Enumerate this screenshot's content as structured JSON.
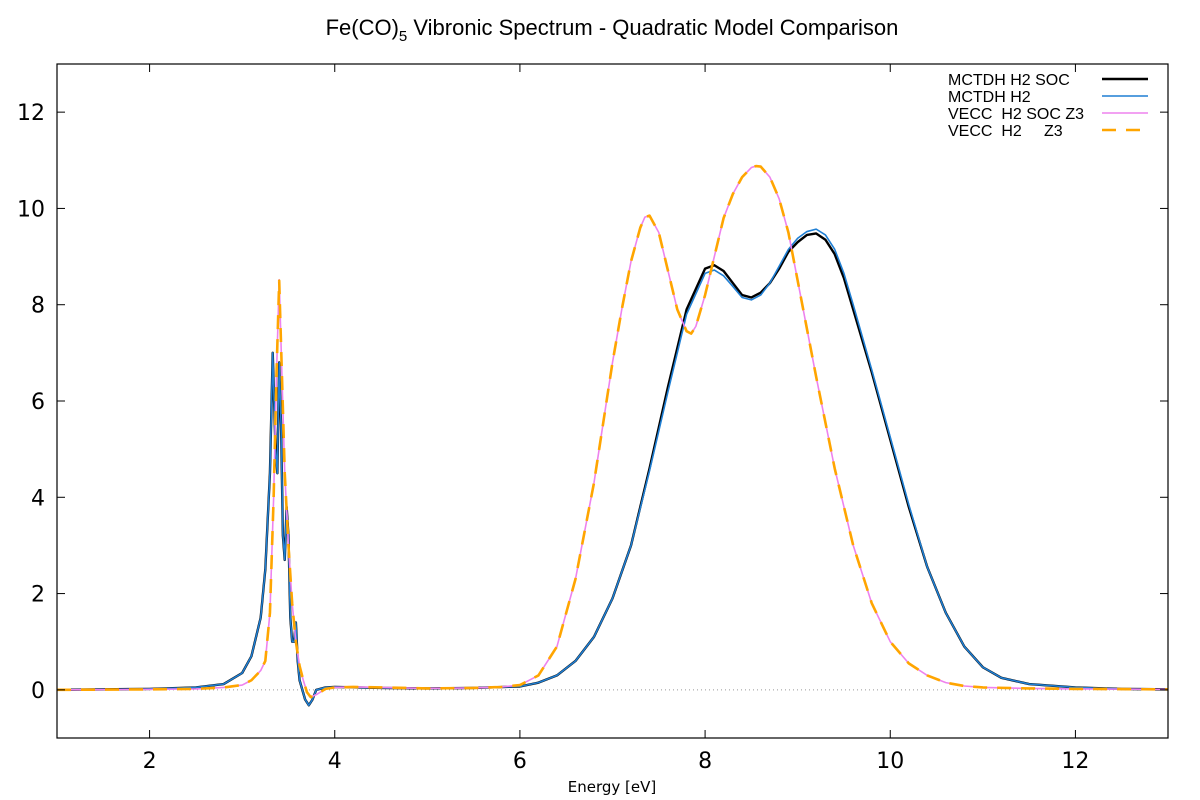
{
  "chart_data": {
    "type": "line",
    "title_main": "Fe(CO)",
    "title_sub": "5",
    "title_rest": " Vibronic Spectrum - Quadratic Model Comparison",
    "xlabel": "Energy [eV]",
    "ylabel": "",
    "xlim": [
      1,
      13
    ],
    "ylim": [
      -1,
      13
    ],
    "xticks": [
      2,
      4,
      6,
      8,
      10,
      12
    ],
    "yticks": [
      0,
      2,
      4,
      6,
      8,
      10,
      12
    ],
    "grid": false,
    "zero_line": true,
    "legend_position": "top-right",
    "series": [
      {
        "name": "MCTDH H2 SOC",
        "color": "#000000",
        "dash": "solid",
        "width": 2.4,
        "x": [
          1.0,
          2.0,
          2.5,
          2.8,
          3.0,
          3.1,
          3.2,
          3.25,
          3.3,
          3.33,
          3.36,
          3.38,
          3.4,
          3.42,
          3.44,
          3.46,
          3.48,
          3.5,
          3.52,
          3.54,
          3.56,
          3.58,
          3.6,
          3.62,
          3.65,
          3.68,
          3.72,
          3.76,
          3.8,
          3.9,
          4.0,
          4.5,
          5.0,
          5.5,
          6.0,
          6.2,
          6.4,
          6.6,
          6.8,
          7.0,
          7.2,
          7.4,
          7.6,
          7.8,
          8.0,
          8.1,
          8.2,
          8.3,
          8.4,
          8.5,
          8.6,
          8.7,
          8.8,
          8.9,
          9.0,
          9.1,
          9.2,
          9.3,
          9.4,
          9.5,
          9.6,
          9.8,
          10.0,
          10.2,
          10.4,
          10.6,
          10.8,
          11.0,
          11.2,
          11.5,
          12.0,
          12.5,
          13.0
        ],
        "y": [
          0.0,
          0.02,
          0.05,
          0.12,
          0.35,
          0.7,
          1.5,
          2.5,
          4.5,
          7.0,
          5.0,
          4.5,
          6.8,
          5.5,
          3.2,
          2.7,
          3.8,
          3.2,
          1.5,
          1.0,
          1.0,
          1.4,
          0.6,
          0.2,
          0.0,
          -0.2,
          -0.32,
          -0.2,
          0.0,
          0.05,
          0.06,
          0.04,
          0.03,
          0.04,
          0.07,
          0.15,
          0.3,
          0.6,
          1.1,
          1.9,
          3.0,
          4.6,
          6.3,
          7.9,
          8.75,
          8.82,
          8.7,
          8.45,
          8.2,
          8.15,
          8.25,
          8.45,
          8.75,
          9.1,
          9.3,
          9.45,
          9.48,
          9.35,
          9.05,
          8.55,
          7.9,
          6.6,
          5.2,
          3.8,
          2.55,
          1.6,
          0.9,
          0.47,
          0.25,
          0.12,
          0.05,
          0.02,
          0.01
        ]
      },
      {
        "name": "MCTDH H2",
        "color": "#1f7fd4",
        "dash": "solid",
        "width": 1.6,
        "x": [
          1.0,
          2.0,
          2.5,
          2.8,
          3.0,
          3.1,
          3.2,
          3.25,
          3.3,
          3.33,
          3.36,
          3.38,
          3.4,
          3.42,
          3.44,
          3.46,
          3.48,
          3.5,
          3.52,
          3.54,
          3.56,
          3.58,
          3.6,
          3.62,
          3.65,
          3.68,
          3.72,
          3.76,
          3.8,
          3.9,
          4.0,
          4.5,
          5.0,
          5.5,
          6.0,
          6.2,
          6.4,
          6.6,
          6.8,
          7.0,
          7.2,
          7.4,
          7.6,
          7.8,
          8.0,
          8.1,
          8.2,
          8.3,
          8.4,
          8.5,
          8.6,
          8.7,
          8.8,
          8.9,
          9.0,
          9.1,
          9.2,
          9.3,
          9.4,
          9.5,
          9.6,
          9.8,
          10.0,
          10.2,
          10.4,
          10.6,
          10.8,
          11.0,
          11.2,
          11.5,
          12.0,
          12.5,
          13.0
        ],
        "y": [
          0.0,
          0.02,
          0.05,
          0.12,
          0.35,
          0.7,
          1.5,
          2.5,
          4.5,
          7.0,
          5.0,
          4.5,
          6.8,
          5.5,
          3.2,
          2.7,
          3.8,
          3.2,
          1.5,
          1.0,
          1.0,
          1.4,
          0.6,
          0.2,
          0.0,
          -0.2,
          -0.32,
          -0.2,
          0.0,
          0.05,
          0.06,
          0.04,
          0.03,
          0.04,
          0.07,
          0.15,
          0.3,
          0.6,
          1.1,
          1.9,
          3.0,
          4.55,
          6.2,
          7.8,
          8.65,
          8.72,
          8.6,
          8.38,
          8.15,
          8.1,
          8.2,
          8.45,
          8.8,
          9.15,
          9.38,
          9.52,
          9.57,
          9.45,
          9.15,
          8.65,
          8.0,
          6.65,
          5.25,
          3.85,
          2.55,
          1.6,
          0.9,
          0.47,
          0.25,
          0.12,
          0.05,
          0.02,
          0.01
        ]
      },
      {
        "name": "VECC  H2 SOC Z3",
        "color": "#ee82ee",
        "dash": "solid",
        "width": 1.6,
        "x": [
          1.0,
          2.0,
          2.5,
          2.8,
          3.0,
          3.1,
          3.2,
          3.25,
          3.3,
          3.34,
          3.37,
          3.4,
          3.43,
          3.46,
          3.5,
          3.54,
          3.58,
          3.62,
          3.66,
          3.7,
          3.74,
          3.8,
          3.9,
          4.0,
          4.2,
          4.5,
          5.0,
          5.5,
          5.8,
          6.0,
          6.2,
          6.4,
          6.6,
          6.8,
          7.0,
          7.1,
          7.2,
          7.3,
          7.35,
          7.4,
          7.5,
          7.6,
          7.7,
          7.8,
          7.85,
          7.9,
          8.0,
          8.1,
          8.2,
          8.3,
          8.4,
          8.5,
          8.55,
          8.6,
          8.7,
          8.8,
          8.9,
          9.0,
          9.2,
          9.4,
          9.6,
          9.8,
          10.0,
          10.2,
          10.4,
          10.6,
          10.8,
          11.0,
          11.5,
          12.0,
          13.0
        ],
        "y": [
          0.0,
          0.01,
          0.02,
          0.05,
          0.1,
          0.2,
          0.4,
          0.6,
          1.6,
          4.0,
          6.5,
          8.52,
          6.5,
          4.5,
          3.0,
          1.8,
          1.0,
          0.5,
          0.2,
          -0.05,
          -0.15,
          -0.1,
          0.02,
          0.05,
          0.06,
          0.05,
          0.03,
          0.04,
          0.06,
          0.1,
          0.3,
          0.9,
          2.3,
          4.3,
          6.8,
          7.9,
          8.9,
          9.6,
          9.82,
          9.85,
          9.5,
          8.7,
          7.9,
          7.45,
          7.4,
          7.55,
          8.2,
          9.0,
          9.8,
          10.3,
          10.65,
          10.85,
          10.88,
          10.87,
          10.65,
          10.2,
          9.5,
          8.5,
          6.5,
          4.6,
          3.0,
          1.8,
          1.0,
          0.55,
          0.3,
          0.15,
          0.08,
          0.05,
          0.03,
          0.02,
          0.01
        ]
      },
      {
        "name": "VECC  H2     Z3",
        "color": "#ffa500",
        "dash": "dashed",
        "width": 2.6,
        "x": [
          1.0,
          2.0,
          2.5,
          2.8,
          3.0,
          3.1,
          3.2,
          3.25,
          3.3,
          3.34,
          3.37,
          3.4,
          3.43,
          3.46,
          3.5,
          3.54,
          3.58,
          3.62,
          3.66,
          3.7,
          3.74,
          3.8,
          3.9,
          4.0,
          4.2,
          4.5,
          5.0,
          5.5,
          5.8,
          6.0,
          6.2,
          6.4,
          6.6,
          6.8,
          7.0,
          7.1,
          7.2,
          7.3,
          7.35,
          7.4,
          7.5,
          7.6,
          7.7,
          7.8,
          7.85,
          7.9,
          8.0,
          8.1,
          8.2,
          8.3,
          8.4,
          8.5,
          8.55,
          8.6,
          8.7,
          8.8,
          8.9,
          9.0,
          9.2,
          9.4,
          9.6,
          9.8,
          10.0,
          10.2,
          10.4,
          10.6,
          10.8,
          11.0,
          11.5,
          12.0,
          13.0
        ],
        "y": [
          0.0,
          0.01,
          0.02,
          0.05,
          0.1,
          0.2,
          0.4,
          0.6,
          1.6,
          4.0,
          6.5,
          8.5,
          6.5,
          4.5,
          3.0,
          1.8,
          1.0,
          0.5,
          0.2,
          -0.05,
          -0.15,
          -0.1,
          0.02,
          0.05,
          0.06,
          0.05,
          0.03,
          0.04,
          0.06,
          0.1,
          0.3,
          0.9,
          2.3,
          4.3,
          6.8,
          7.9,
          8.9,
          9.6,
          9.82,
          9.85,
          9.5,
          8.7,
          7.9,
          7.45,
          7.4,
          7.55,
          8.2,
          9.0,
          9.8,
          10.3,
          10.65,
          10.85,
          10.88,
          10.87,
          10.65,
          10.2,
          9.5,
          8.5,
          6.5,
          4.6,
          3.0,
          1.8,
          1.0,
          0.55,
          0.3,
          0.15,
          0.08,
          0.05,
          0.03,
          0.02,
          0.01
        ]
      }
    ]
  }
}
